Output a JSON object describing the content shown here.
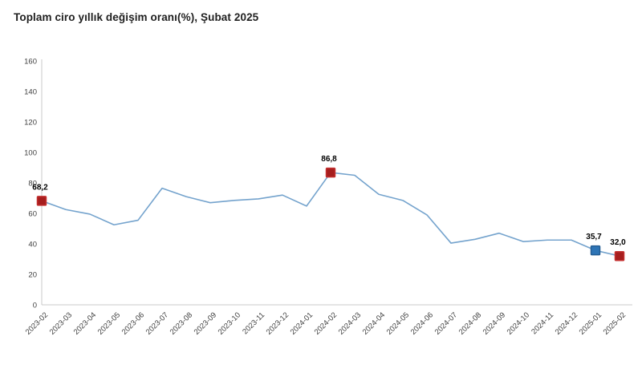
{
  "title": "Toplam ciro yıllık değişim oranı(%), Şubat 2025",
  "colors": {
    "line": "#74a3cd",
    "axis": "#c9c9c9",
    "tick_label": "#3f3f3f",
    "title_text": "#1f1f1f",
    "marker_red_fill": "#a61e1e",
    "marker_red_stroke": "#c43030",
    "marker_blue_fill": "#2e75b6",
    "marker_blue_stroke": "#255e94"
  },
  "chart_data": {
    "type": "line",
    "title": "Toplam ciro yıllık değişim oranı(%), Şubat 2025",
    "x": [
      "2023-02",
      "2023-03",
      "2023-04",
      "2023-05",
      "2023-06",
      "2023-07",
      "2023-08",
      "2023-09",
      "2023-10",
      "2023-11",
      "2023-12",
      "2024-01",
      "2024-02",
      "2024-03",
      "2024-04",
      "2024-05",
      "2024-06",
      "2024-07",
      "2024-08",
      "2024-09",
      "2024-10",
      "2024-11",
      "2024-12",
      "2025-01",
      "2025-02"
    ],
    "values": [
      68.2,
      62.5,
      59.5,
      52.5,
      55.5,
      76.5,
      71.0,
      67.0,
      68.5,
      69.5,
      72.0,
      64.8,
      86.8,
      85.0,
      72.5,
      68.5,
      59.0,
      40.5,
      43.0,
      47.0,
      41.5,
      42.5,
      42.5,
      35.7,
      32.0
    ],
    "xlabel": "",
    "ylabel": "",
    "ylim": [
      0,
      160
    ],
    "yticks": [
      0,
      20,
      40,
      60,
      80,
      100,
      120,
      140,
      160
    ],
    "grid": false,
    "legend_position": "none",
    "annotations": [
      {
        "x": "2023-02",
        "value": 68.2,
        "label": "68,2",
        "marker": "red-square"
      },
      {
        "x": "2024-02",
        "value": 86.8,
        "label": "86,8",
        "marker": "red-square"
      },
      {
        "x": "2025-01",
        "value": 35.7,
        "label": "35,7",
        "marker": "blue-square"
      },
      {
        "x": "2025-02",
        "value": 32.0,
        "label": "32,0",
        "marker": "red-square"
      }
    ]
  }
}
